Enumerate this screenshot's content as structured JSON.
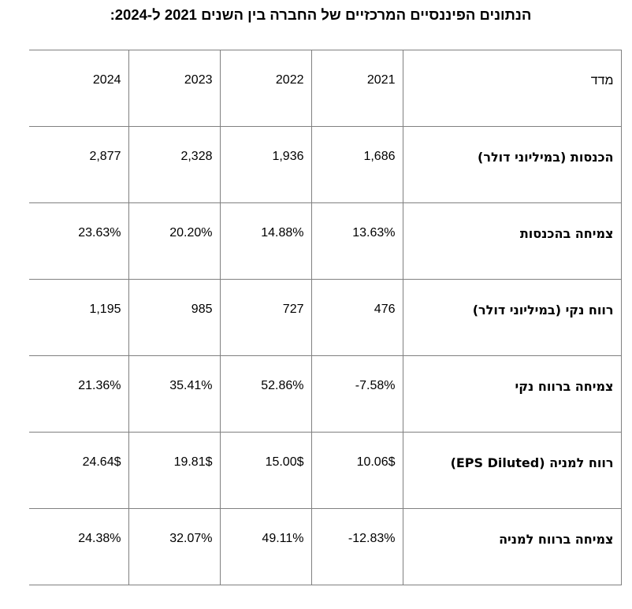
{
  "title": "הנתונים הפיננסיים המרכזיים של החברה בין השנים 2021 ל-2024:",
  "table": {
    "header": {
      "label": "מדד",
      "years": [
        "2021",
        "2022",
        "2023",
        "2024"
      ]
    },
    "rows": [
      {
        "label": "הכנסות (במיליוני דולר)",
        "values": [
          "1,686",
          "1,936",
          "2,328",
          "2,877"
        ]
      },
      {
        "label": "צמיחה בהכנסות",
        "values": [
          "13.63%",
          "14.88%",
          "20.20%",
          "23.63%"
        ]
      },
      {
        "label": "רווח נקי (במיליוני דולר)",
        "values": [
          "476",
          "727",
          "985",
          "1,195"
        ]
      },
      {
        "label": "צמיחה ברווח נקי",
        "values": [
          "-7.58%",
          "52.86%",
          "35.41%",
          "21.36%"
        ]
      },
      {
        "label": "רווח למניה (EPS Diluted)",
        "values": [
          "10.06$",
          "15.00$",
          "19.81$",
          "24.64$"
        ]
      },
      {
        "label": "צמיחה ברווח למניה",
        "values": [
          "-12.83%",
          "49.11%",
          "32.07%",
          "24.38%"
        ]
      }
    ]
  },
  "colors": {
    "border": "#808080",
    "text": "#000000",
    "background": "#ffffff"
  }
}
